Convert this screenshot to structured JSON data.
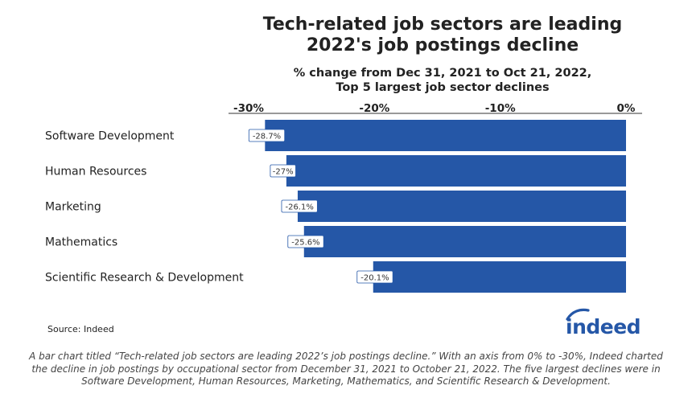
{
  "title_line1": "Tech-related job sectors are leading",
  "title_line2": "2022's job postings decline",
  "subtitle_line1": "% change from Dec 31, 2021 to Oct 21, 2022,",
  "subtitle_line2": "Top 5 largest job sector declines",
  "source": "Source: Indeed",
  "logo_text": "indeed",
  "caption": "A bar chart titled “Tech-related job sectors are leading 2022’s job postings decline.” With an axis from 0% to -30%, Indeed charted the decline in job postings by occupational sector from December 31, 2021 to October 21, 2022. The five largest declines were in Software Development, Human Resources, Marketing, Mathematics, and Scientific Research & Development.",
  "colors": {
    "bar": "#2557a7",
    "label_border": "#2557a7",
    "logo": "#2557a7"
  },
  "chart_data": {
    "type": "bar",
    "orientation": "horizontal",
    "categories": [
      "Software Development",
      "Human Resources",
      "Marketing",
      "Mathematics",
      "Scientific Research & Development"
    ],
    "values": [
      -28.7,
      -27,
      -26.1,
      -25.6,
      -20.1
    ],
    "data_labels": [
      "-28.7%",
      "-27%",
      "-26.1%",
      "-25.6%",
      "-20.1%"
    ],
    "xticks": [
      -30,
      -20,
      -10,
      0
    ],
    "xtick_labels": [
      "-30%",
      "-20%",
      "-10%",
      "0%"
    ],
    "xlim": [
      -30,
      0
    ],
    "axis_position": "top",
    "grid": false,
    "legend": "none"
  }
}
